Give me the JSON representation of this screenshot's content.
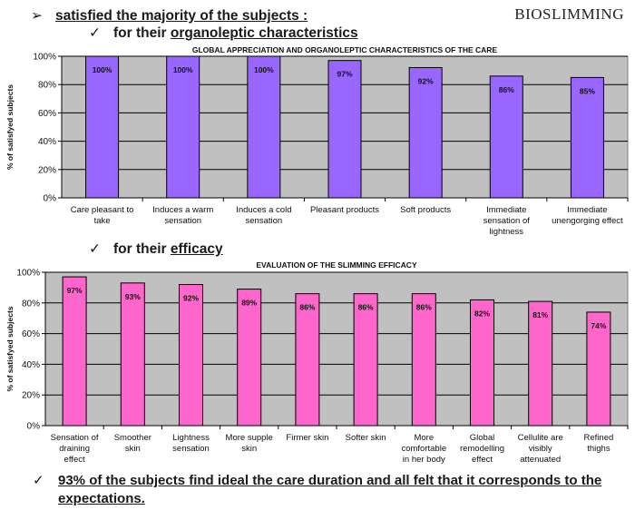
{
  "header": {
    "bullet": "➢",
    "title": "satisfied the majority of the subjects :",
    "brand": "BIOSLIMMING"
  },
  "section1": {
    "check": "✓",
    "prefix": "for their ",
    "emphasis": "organoleptic characteristics"
  },
  "section2": {
    "check": "✓",
    "prefix": "for their ",
    "emphasis": "efficacy"
  },
  "footer": {
    "check": "✓",
    "text": "93% of the subjects find ideal the care duration and all felt that it corresponds to the expectations."
  },
  "colors": {
    "plot_bg": "#c0c0c0",
    "purple_bar": "#9966ff",
    "pink_bar": "#ff66cc",
    "grid": "#000000"
  },
  "chart_data": [
    {
      "type": "bar",
      "title": "GLOBAL APPRECIATION AND ORGANOLEPTIC CHARACTERISTICS OF THE CARE",
      "ylabel": "% of satisfyed subjects",
      "xlabel": "",
      "ylim": [
        0,
        100
      ],
      "yticks": [
        "0%",
        "20%",
        "40%",
        "60%",
        "80%",
        "100%"
      ],
      "bar_color": "#9966ff",
      "categories": [
        [
          "Care pleasant to",
          "take"
        ],
        [
          "Induces a warm",
          "sensation"
        ],
        [
          "Induces a cold",
          "sensation"
        ],
        [
          "Pleasant products"
        ],
        [
          "Soft products"
        ],
        [
          "Immediate",
          "sensation of",
          "lightness"
        ],
        [
          "Immediate",
          "unengorging effect"
        ]
      ],
      "values": [
        100,
        100,
        100,
        97,
        92,
        86,
        85
      ],
      "labels": [
        "100%",
        "100%",
        "100%",
        "97%",
        "92%",
        "86%",
        "85%"
      ]
    },
    {
      "type": "bar",
      "title": "EVALUATION OF THE SLIMMING EFFICACY",
      "ylabel": "% of satisfyed subjects",
      "xlabel": "",
      "ylim": [
        0,
        100
      ],
      "yticks": [
        "0%",
        "20%",
        "40%",
        "60%",
        "80%",
        "100%"
      ],
      "bar_color": "#ff66cc",
      "categories": [
        [
          "Sensation of",
          "draining",
          "effect"
        ],
        [
          "Smoother",
          "skin"
        ],
        [
          "Lightness",
          "sensation"
        ],
        [
          "More supple",
          "skin"
        ],
        [
          "Firmer skin"
        ],
        [
          "Softer skin"
        ],
        [
          "More",
          "comfortable",
          "in her body"
        ],
        [
          "Global",
          "remodelling",
          "effect"
        ],
        [
          "Cellulite are",
          "visibly",
          "attenuated"
        ],
        [
          "Refined",
          "thighs"
        ]
      ],
      "values": [
        97,
        93,
        92,
        89,
        86,
        86,
        86,
        82,
        81,
        74
      ],
      "labels": [
        "97%",
        "93%",
        "92%",
        "89%",
        "86%",
        "86%",
        "86%",
        "82%",
        "81%",
        "74%"
      ]
    }
  ]
}
